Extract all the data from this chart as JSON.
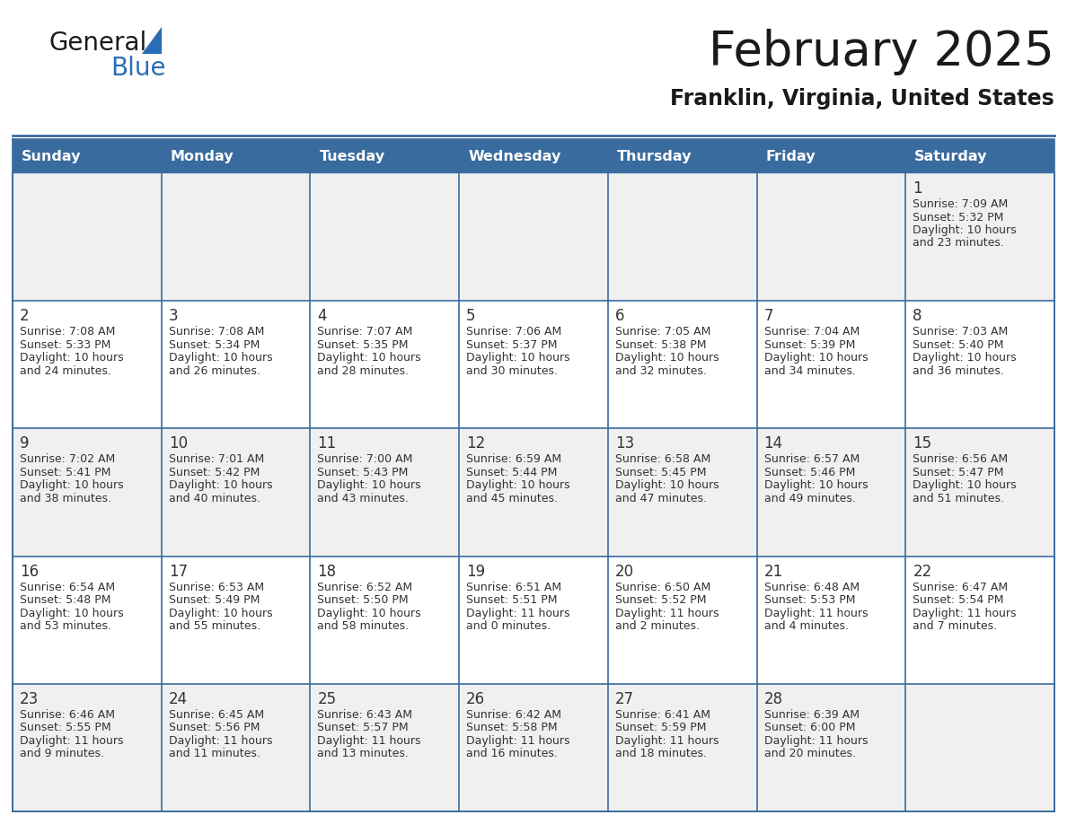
{
  "title": "February 2025",
  "subtitle": "Franklin, Virginia, United States",
  "header_bg": "#3a6b9e",
  "header_text": "#ffffff",
  "row_bg_light": "#f0f0f0",
  "row_bg_white": "#ffffff",
  "cell_border": "#3a6b9e",
  "day_headers": [
    "Sunday",
    "Monday",
    "Tuesday",
    "Wednesday",
    "Thursday",
    "Friday",
    "Saturday"
  ],
  "title_color": "#1a1a1a",
  "subtitle_color": "#1a1a1a",
  "day_num_color": "#333333",
  "cell_text_color": "#333333",
  "logo_general_color": "#1a1a1a",
  "logo_blue_color": "#2a6db5",
  "logo_triangle_color": "#2a6db5",
  "calendar": [
    [
      null,
      null,
      null,
      null,
      null,
      null,
      {
        "day": 1,
        "sunrise": "7:09 AM",
        "sunset": "5:32 PM",
        "daylight_h": "10 hours",
        "daylight_m": "and 23 minutes."
      }
    ],
    [
      {
        "day": 2,
        "sunrise": "7:08 AM",
        "sunset": "5:33 PM",
        "daylight_h": "10 hours",
        "daylight_m": "and 24 minutes."
      },
      {
        "day": 3,
        "sunrise": "7:08 AM",
        "sunset": "5:34 PM",
        "daylight_h": "10 hours",
        "daylight_m": "and 26 minutes."
      },
      {
        "day": 4,
        "sunrise": "7:07 AM",
        "sunset": "5:35 PM",
        "daylight_h": "10 hours",
        "daylight_m": "and 28 minutes."
      },
      {
        "day": 5,
        "sunrise": "7:06 AM",
        "sunset": "5:37 PM",
        "daylight_h": "10 hours",
        "daylight_m": "and 30 minutes."
      },
      {
        "day": 6,
        "sunrise": "7:05 AM",
        "sunset": "5:38 PM",
        "daylight_h": "10 hours",
        "daylight_m": "and 32 minutes."
      },
      {
        "day": 7,
        "sunrise": "7:04 AM",
        "sunset": "5:39 PM",
        "daylight_h": "10 hours",
        "daylight_m": "and 34 minutes."
      },
      {
        "day": 8,
        "sunrise": "7:03 AM",
        "sunset": "5:40 PM",
        "daylight_h": "10 hours",
        "daylight_m": "and 36 minutes."
      }
    ],
    [
      {
        "day": 9,
        "sunrise": "7:02 AM",
        "sunset": "5:41 PM",
        "daylight_h": "10 hours",
        "daylight_m": "and 38 minutes."
      },
      {
        "day": 10,
        "sunrise": "7:01 AM",
        "sunset": "5:42 PM",
        "daylight_h": "10 hours",
        "daylight_m": "and 40 minutes."
      },
      {
        "day": 11,
        "sunrise": "7:00 AM",
        "sunset": "5:43 PM",
        "daylight_h": "10 hours",
        "daylight_m": "and 43 minutes."
      },
      {
        "day": 12,
        "sunrise": "6:59 AM",
        "sunset": "5:44 PM",
        "daylight_h": "10 hours",
        "daylight_m": "and 45 minutes."
      },
      {
        "day": 13,
        "sunrise": "6:58 AM",
        "sunset": "5:45 PM",
        "daylight_h": "10 hours",
        "daylight_m": "and 47 minutes."
      },
      {
        "day": 14,
        "sunrise": "6:57 AM",
        "sunset": "5:46 PM",
        "daylight_h": "10 hours",
        "daylight_m": "and 49 minutes."
      },
      {
        "day": 15,
        "sunrise": "6:56 AM",
        "sunset": "5:47 PM",
        "daylight_h": "10 hours",
        "daylight_m": "and 51 minutes."
      }
    ],
    [
      {
        "day": 16,
        "sunrise": "6:54 AM",
        "sunset": "5:48 PM",
        "daylight_h": "10 hours",
        "daylight_m": "and 53 minutes."
      },
      {
        "day": 17,
        "sunrise": "6:53 AM",
        "sunset": "5:49 PM",
        "daylight_h": "10 hours",
        "daylight_m": "and 55 minutes."
      },
      {
        "day": 18,
        "sunrise": "6:52 AM",
        "sunset": "5:50 PM",
        "daylight_h": "10 hours",
        "daylight_m": "and 58 minutes."
      },
      {
        "day": 19,
        "sunrise": "6:51 AM",
        "sunset": "5:51 PM",
        "daylight_h": "11 hours",
        "daylight_m": "and 0 minutes."
      },
      {
        "day": 20,
        "sunrise": "6:50 AM",
        "sunset": "5:52 PM",
        "daylight_h": "11 hours",
        "daylight_m": "and 2 minutes."
      },
      {
        "day": 21,
        "sunrise": "6:48 AM",
        "sunset": "5:53 PM",
        "daylight_h": "11 hours",
        "daylight_m": "and 4 minutes."
      },
      {
        "day": 22,
        "sunrise": "6:47 AM",
        "sunset": "5:54 PM",
        "daylight_h": "11 hours",
        "daylight_m": "and 7 minutes."
      }
    ],
    [
      {
        "day": 23,
        "sunrise": "6:46 AM",
        "sunset": "5:55 PM",
        "daylight_h": "11 hours",
        "daylight_m": "and 9 minutes."
      },
      {
        "day": 24,
        "sunrise": "6:45 AM",
        "sunset": "5:56 PM",
        "daylight_h": "11 hours",
        "daylight_m": "and 11 minutes."
      },
      {
        "day": 25,
        "sunrise": "6:43 AM",
        "sunset": "5:57 PM",
        "daylight_h": "11 hours",
        "daylight_m": "and 13 minutes."
      },
      {
        "day": 26,
        "sunrise": "6:42 AM",
        "sunset": "5:58 PM",
        "daylight_h": "11 hours",
        "daylight_m": "and 16 minutes."
      },
      {
        "day": 27,
        "sunrise": "6:41 AM",
        "sunset": "5:59 PM",
        "daylight_h": "11 hours",
        "daylight_m": "and 18 minutes."
      },
      {
        "day": 28,
        "sunrise": "6:39 AM",
        "sunset": "6:00 PM",
        "daylight_h": "11 hours",
        "daylight_m": "and 20 minutes."
      },
      null
    ]
  ]
}
